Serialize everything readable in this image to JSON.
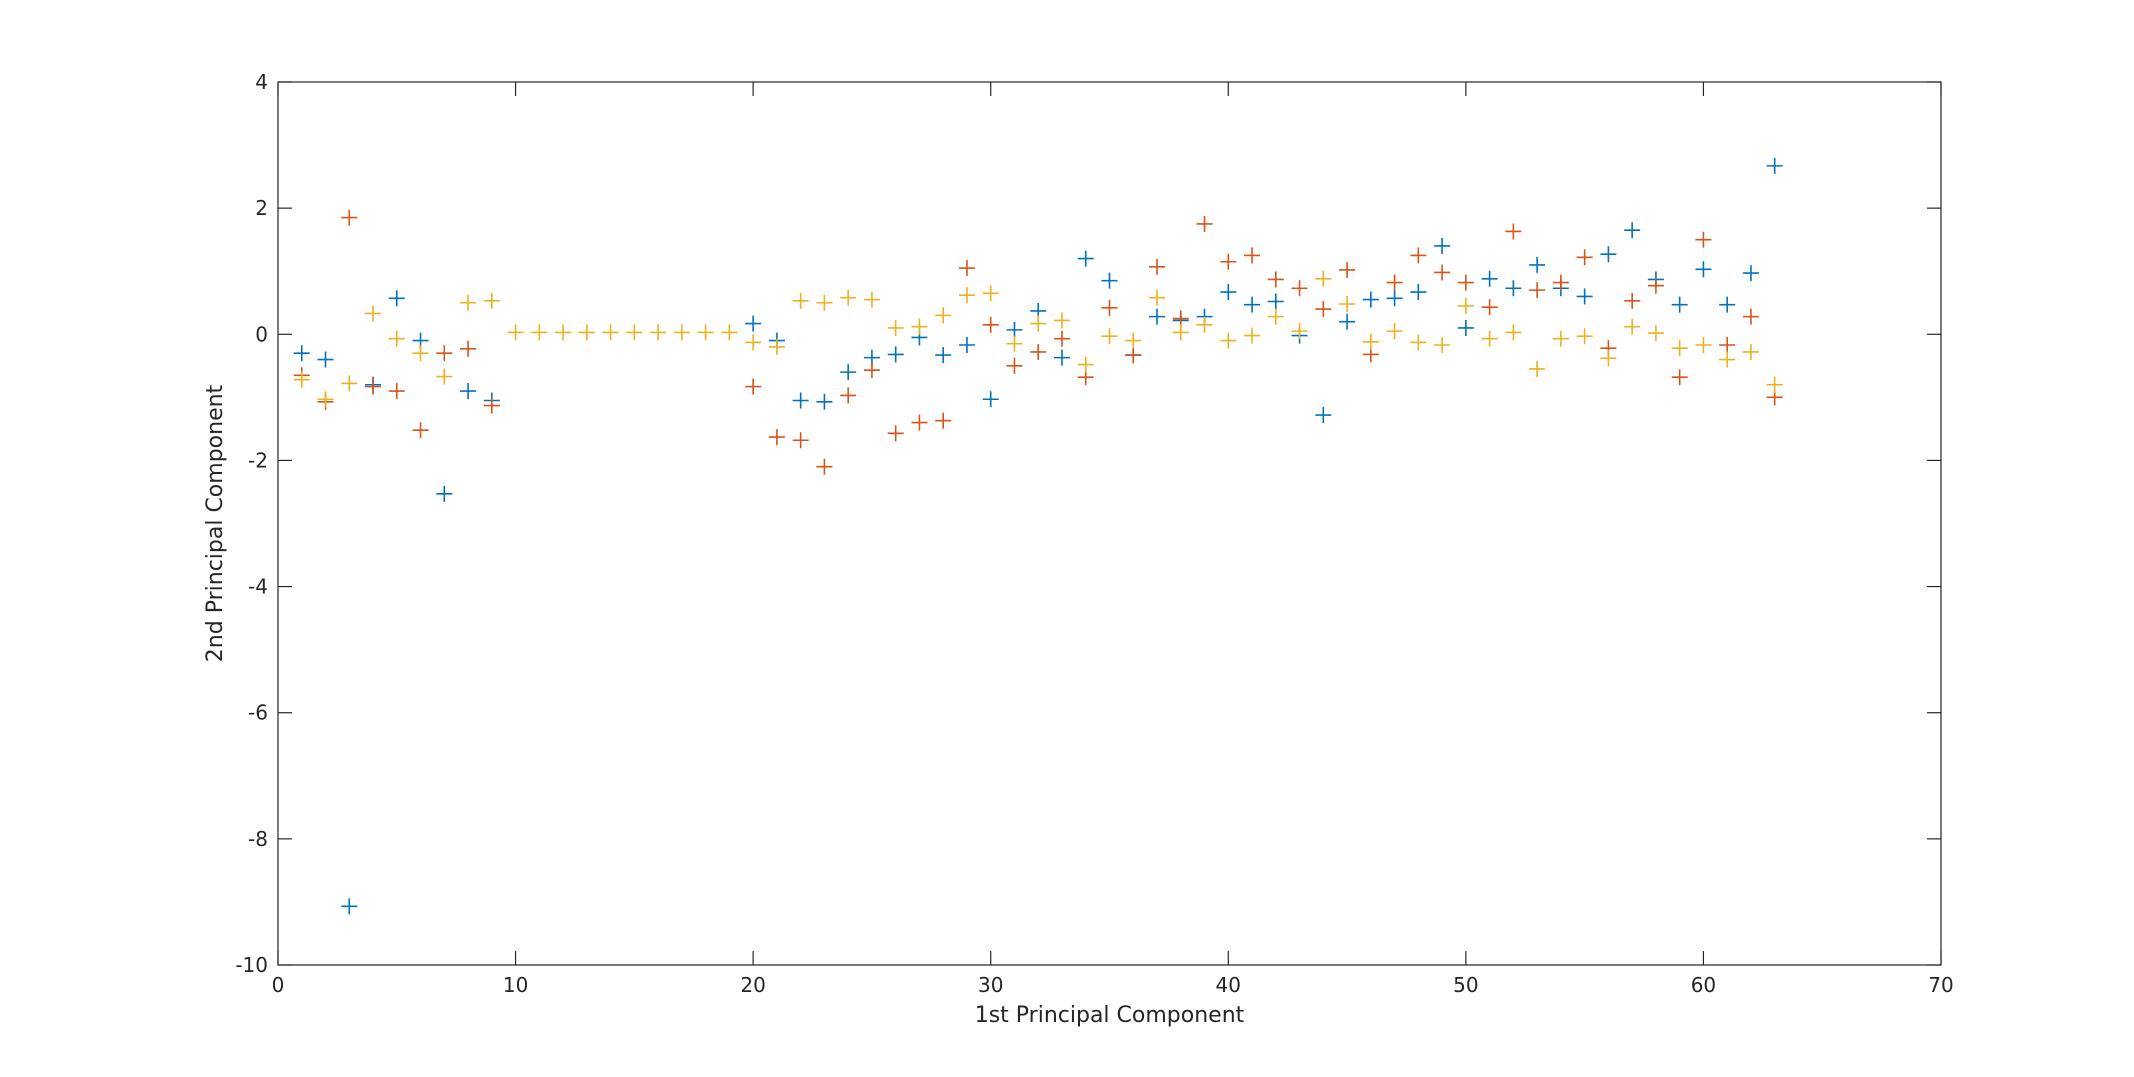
{
  "chart_data": {
    "type": "scatter",
    "title": "",
    "xlabel": "1st Principal Component",
    "ylabel": "2nd Principal Component",
    "xlim": [
      0,
      70
    ],
    "ylim": [
      -10,
      4
    ],
    "xticks": [
      0,
      10,
      20,
      30,
      40,
      50,
      60,
      70
    ],
    "yticks": [
      -10,
      -8,
      -6,
      -4,
      -2,
      0,
      2,
      4
    ],
    "grid": false,
    "marker": "plus",
    "colors": [
      "#0072BD",
      "#D95319",
      "#EDB120"
    ],
    "x": [
      1,
      2,
      3,
      4,
      5,
      6,
      7,
      8,
      9,
      10,
      11,
      12,
      13,
      14,
      15,
      16,
      17,
      18,
      19,
      20,
      21,
      22,
      23,
      24,
      25,
      26,
      27,
      28,
      29,
      30,
      31,
      32,
      33,
      34,
      35,
      36,
      37,
      38,
      39,
      40,
      41,
      42,
      43,
      44,
      45,
      46,
      47,
      48,
      49,
      50,
      51,
      52,
      53,
      54,
      55,
      56,
      57,
      58,
      59,
      60,
      61,
      62,
      63
    ],
    "series": [
      {
        "values": [
          -0.3,
          -0.4,
          -9.07,
          -0.8,
          0.57,
          -0.1,
          -2.53,
          -0.9,
          -1.05,
          null,
          null,
          null,
          null,
          null,
          null,
          null,
          null,
          null,
          null,
          0.17,
          -0.1,
          -1.05,
          -1.07,
          -0.6,
          -0.37,
          -0.32,
          -0.05,
          -0.33,
          -0.17,
          -1.03,
          0.07,
          0.37,
          -0.37,
          1.2,
          0.85,
          -0.33,
          0.28,
          0.22,
          0.28,
          0.67,
          0.47,
          0.52,
          -0.02,
          -1.28,
          0.2,
          0.55,
          0.57,
          0.67,
          1.4,
          0.1,
          0.88,
          0.73,
          1.1,
          0.73,
          0.6,
          1.27,
          1.65,
          0.87,
          0.47,
          1.03,
          0.47,
          0.97,
          2.67
        ]
      },
      {
        "values": [
          -0.65,
          -1.07,
          1.85,
          -0.83,
          -0.9,
          -1.52,
          -0.3,
          -0.23,
          -1.13,
          null,
          null,
          null,
          null,
          null,
          null,
          null,
          null,
          null,
          null,
          -0.83,
          -1.63,
          -1.68,
          -2.1,
          -0.97,
          -0.57,
          -1.57,
          -1.4,
          -1.37,
          1.05,
          0.15,
          -0.5,
          -0.28,
          -0.07,
          -0.68,
          0.42,
          -0.33,
          1.07,
          0.25,
          1.75,
          1.15,
          1.25,
          0.87,
          0.73,
          0.4,
          1.02,
          -0.32,
          0.82,
          1.25,
          0.98,
          0.82,
          0.43,
          1.63,
          0.7,
          0.82,
          1.22,
          -0.22,
          0.53,
          0.77,
          -0.68,
          1.5,
          -0.17,
          0.28,
          -1.0
        ]
      },
      {
        "values": [
          -0.72,
          -1.03,
          -0.78,
          0.33,
          -0.07,
          -0.3,
          -0.67,
          0.5,
          0.53,
          0.03,
          0.03,
          0.03,
          0.03,
          0.03,
          0.03,
          0.03,
          0.03,
          0.03,
          0.03,
          -0.13,
          -0.2,
          0.53,
          0.5,
          0.58,
          0.55,
          0.1,
          0.12,
          0.3,
          0.62,
          0.65,
          -0.15,
          0.17,
          0.22,
          -0.48,
          -0.03,
          -0.1,
          0.58,
          0.03,
          0.15,
          -0.1,
          -0.02,
          0.28,
          0.05,
          0.88,
          0.48,
          -0.12,
          0.05,
          -0.13,
          -0.17,
          0.45,
          -0.07,
          0.03,
          -0.55,
          -0.07,
          -0.03,
          -0.38,
          0.12,
          0.02,
          -0.22,
          -0.17,
          -0.4,
          -0.28,
          -0.8
        ]
      }
    ]
  }
}
